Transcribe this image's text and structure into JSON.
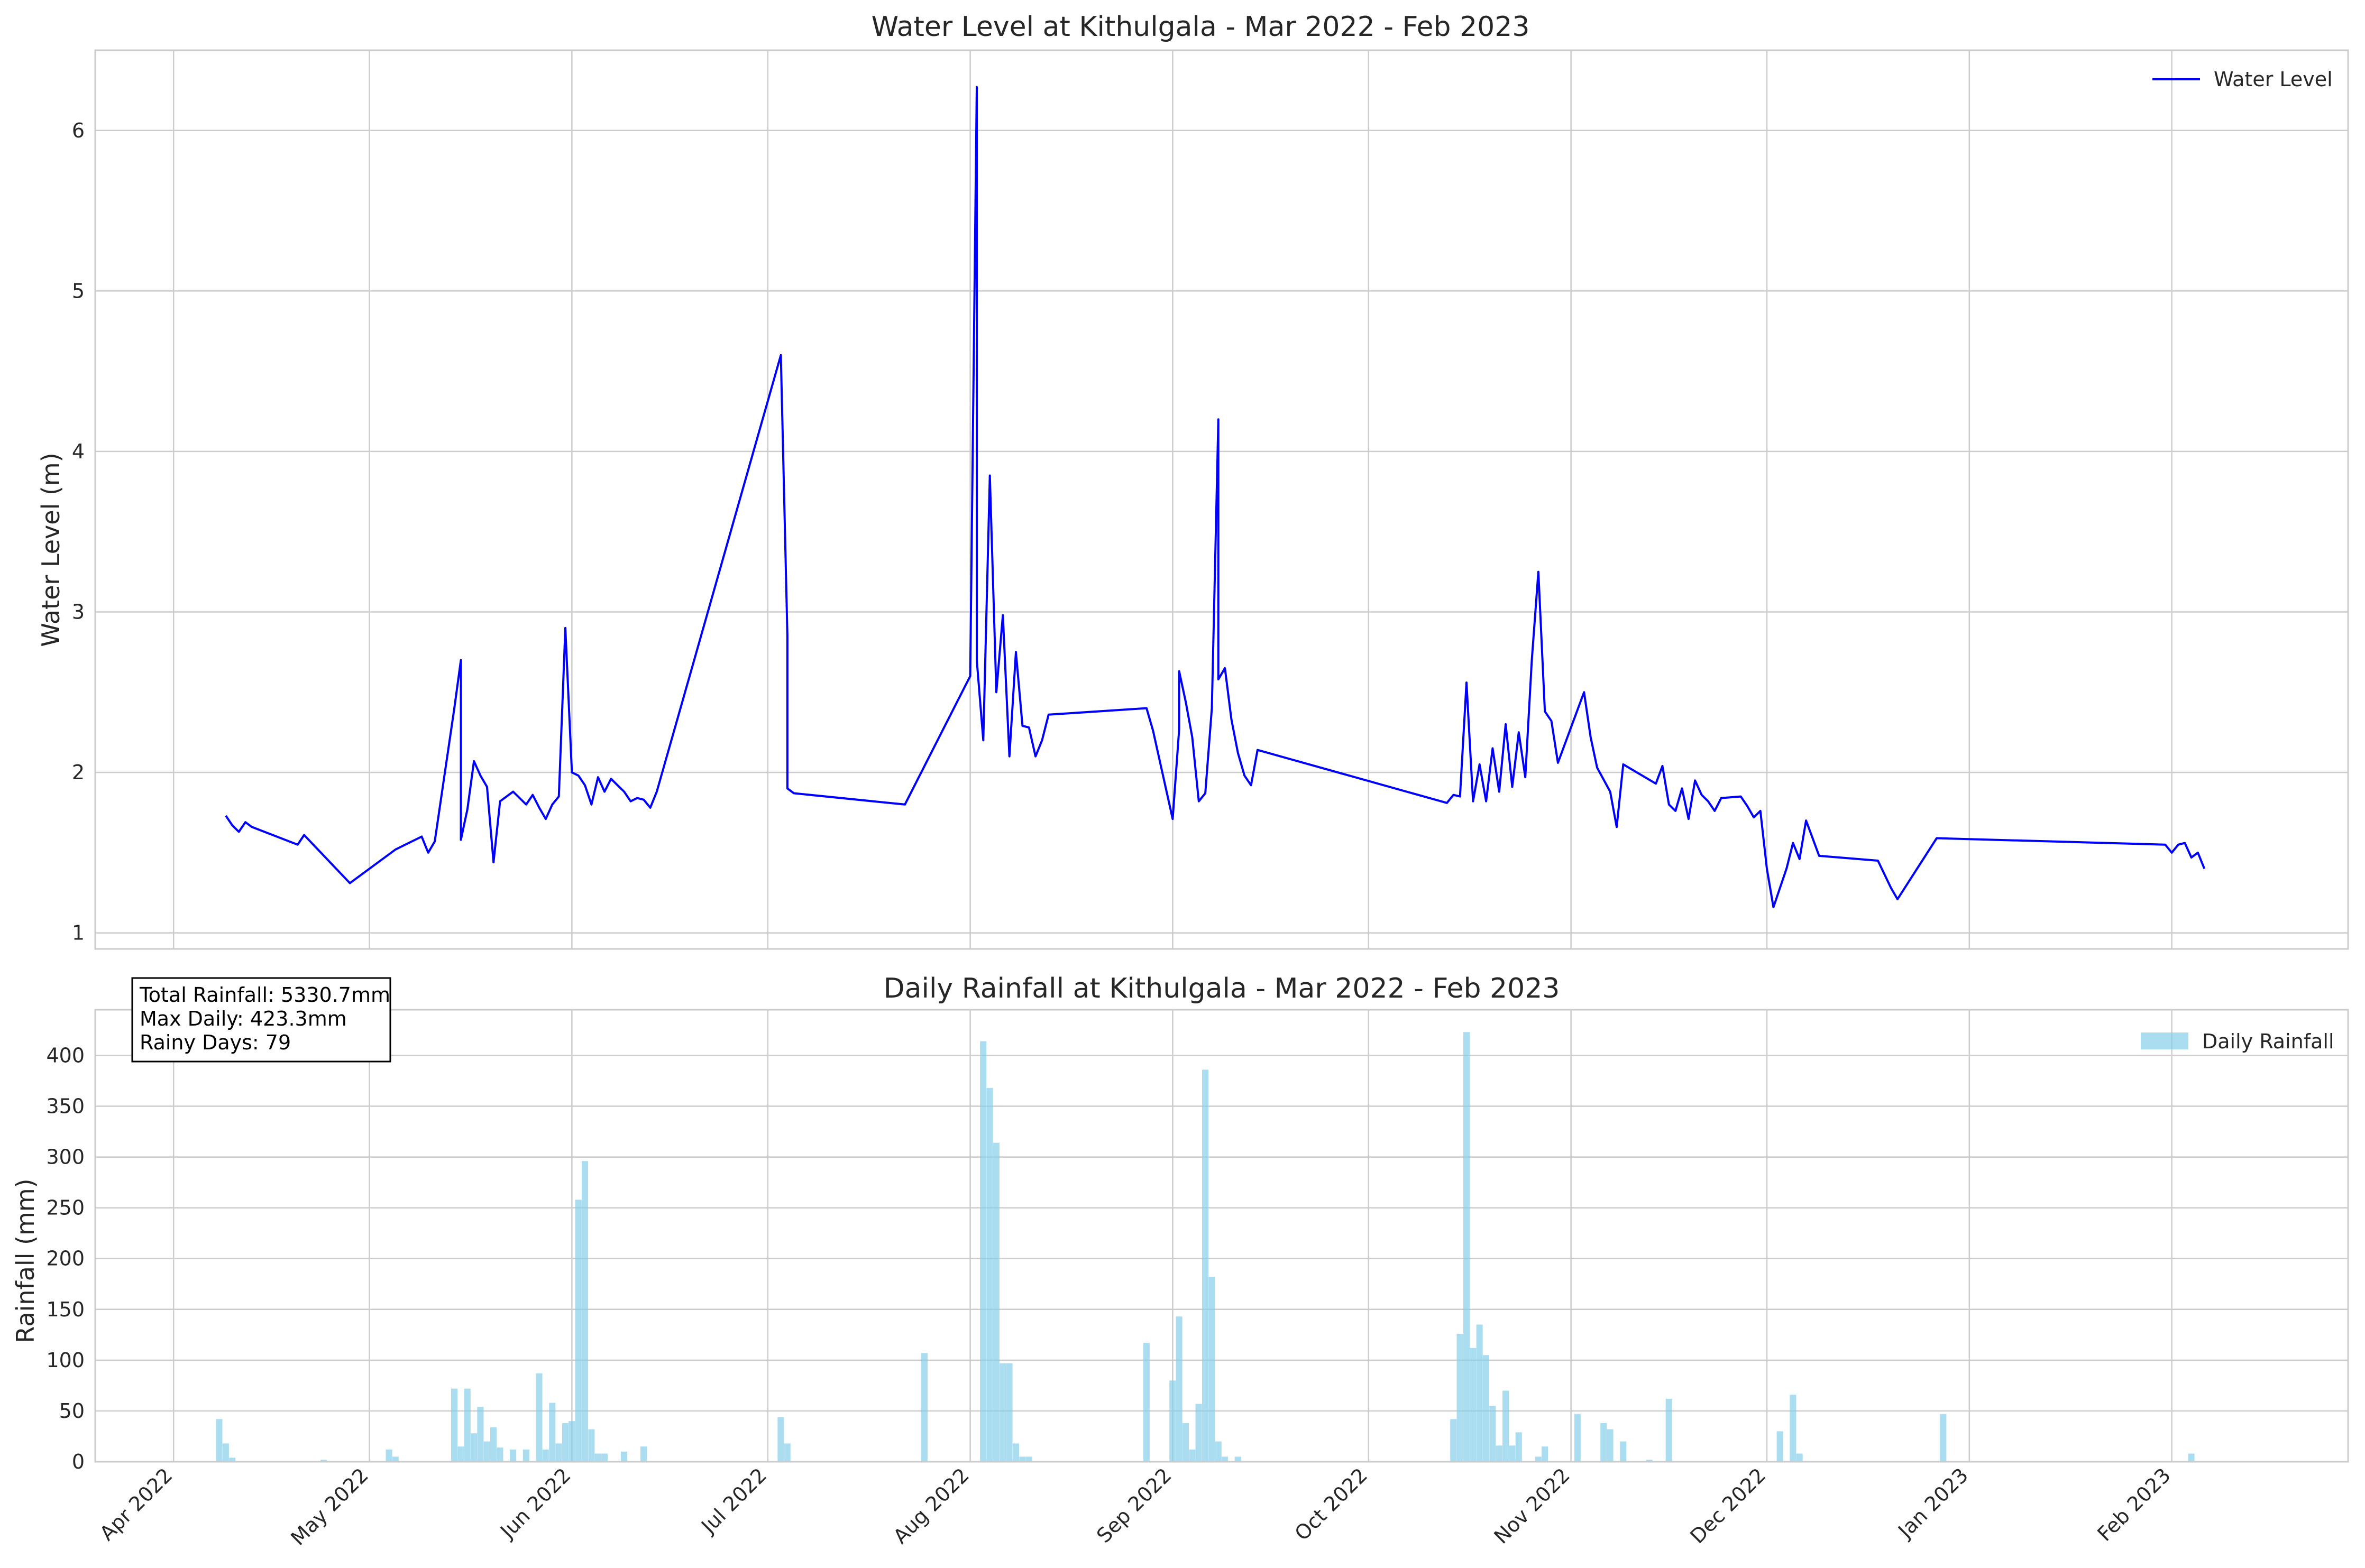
{
  "chart_data": [
    {
      "type": "line",
      "title": "Water Level at Kithulgala - Mar 2022 - Feb 2023",
      "xlabel": "",
      "ylabel": "Water Level (m)",
      "xlim": [
        "2022-03-20",
        "2023-02-28"
      ],
      "ylim": [
        0.9,
        6.5
      ],
      "yticks": [
        1,
        2,
        3,
        4,
        5,
        6
      ],
      "xticks": [
        "2022-04-01",
        "2022-05-01",
        "2022-06-01",
        "2022-07-01",
        "2022-08-01",
        "2022-09-01",
        "2022-10-01",
        "2022-11-01",
        "2022-12-01",
        "2023-01-01",
        "2023-02-01"
      ],
      "grid": true,
      "legend_position": "upper right",
      "series": [
        {
          "name": "Water Level",
          "color": "#0000ff",
          "points": [
            [
              "2022-04-09",
              1.73
            ],
            [
              "2022-04-10",
              1.67
            ],
            [
              "2022-04-11",
              1.63
            ],
            [
              "2022-04-12",
              1.69
            ],
            [
              "2022-04-13",
              1.66
            ],
            [
              "2022-04-20",
              1.55
            ],
            [
              "2022-04-21",
              1.61
            ],
            [
              "2022-04-28",
              1.31
            ],
            [
              "2022-05-05",
              1.52
            ],
            [
              "2022-05-09",
              1.6
            ],
            [
              "2022-05-10",
              1.5
            ],
            [
              "2022-05-11",
              1.57
            ],
            [
              "2022-05-14",
              2.4
            ],
            [
              "2022-05-15",
              2.7
            ],
            [
              "2022-05-15",
              1.58
            ],
            [
              "2022-05-16",
              1.77
            ],
            [
              "2022-05-17",
              2.07
            ],
            [
              "2022-05-18",
              1.98
            ],
            [
              "2022-05-19",
              1.91
            ],
            [
              "2022-05-20",
              1.44
            ],
            [
              "2022-05-21",
              1.82
            ],
            [
              "2022-05-22",
              1.85
            ],
            [
              "2022-05-23",
              1.88
            ],
            [
              "2022-05-25",
              1.8
            ],
            [
              "2022-05-26",
              1.86
            ],
            [
              "2022-05-27",
              1.78
            ],
            [
              "2022-05-28",
              1.71
            ],
            [
              "2022-05-29",
              1.8
            ],
            [
              "2022-05-30",
              1.85
            ],
            [
              "2022-05-31",
              2.9
            ],
            [
              "2022-06-01",
              2.0
            ],
            [
              "2022-06-02",
              1.98
            ],
            [
              "2022-06-03",
              1.92
            ],
            [
              "2022-06-04",
              1.8
            ],
            [
              "2022-06-05",
              1.97
            ],
            [
              "2022-06-06",
              1.88
            ],
            [
              "2022-06-07",
              1.96
            ],
            [
              "2022-06-08",
              1.92
            ],
            [
              "2022-06-09",
              1.88
            ],
            [
              "2022-06-10",
              1.82
            ],
            [
              "2022-06-11",
              1.84
            ],
            [
              "2022-06-12",
              1.83
            ],
            [
              "2022-06-13",
              1.78
            ],
            [
              "2022-06-14",
              1.88
            ],
            [
              "2022-07-03",
              4.6
            ],
            [
              "2022-07-04",
              2.85
            ],
            [
              "2022-07-04",
              1.9
            ],
            [
              "2022-07-05",
              1.87
            ],
            [
              "2022-07-22",
              1.8
            ],
            [
              "2022-08-01",
              2.6
            ],
            [
              "2022-08-02",
              6.27
            ],
            [
              "2022-08-02",
              2.7
            ],
            [
              "2022-08-03",
              2.2
            ],
            [
              "2022-08-04",
              3.85
            ],
            [
              "2022-08-05",
              2.5
            ],
            [
              "2022-08-06",
              2.98
            ],
            [
              "2022-08-07",
              2.1
            ],
            [
              "2022-08-08",
              2.75
            ],
            [
              "2022-08-09",
              2.29
            ],
            [
              "2022-08-10",
              2.28
            ],
            [
              "2022-08-11",
              2.1
            ],
            [
              "2022-08-12",
              2.2
            ],
            [
              "2022-08-13",
              2.36
            ],
            [
              "2022-08-28",
              2.4
            ],
            [
              "2022-08-29",
              2.26
            ],
            [
              "2022-09-01",
              1.71
            ],
            [
              "2022-09-02",
              2.27
            ],
            [
              "2022-09-02",
              2.63
            ],
            [
              "2022-09-03",
              2.44
            ],
            [
              "2022-09-04",
              2.22
            ],
            [
              "2022-09-05",
              1.82
            ],
            [
              "2022-09-06",
              1.87
            ],
            [
              "2022-09-07",
              2.4
            ],
            [
              "2022-09-08",
              4.2
            ],
            [
              "2022-09-08",
              2.58
            ],
            [
              "2022-09-09",
              2.65
            ],
            [
              "2022-09-10",
              2.33
            ],
            [
              "2022-09-11",
              2.12
            ],
            [
              "2022-09-12",
              1.98
            ],
            [
              "2022-09-13",
              1.92
            ],
            [
              "2022-09-14",
              2.14
            ],
            [
              "2022-10-13",
              1.81
            ],
            [
              "2022-10-14",
              1.86
            ],
            [
              "2022-10-15",
              1.85
            ],
            [
              "2022-10-16",
              2.56
            ],
            [
              "2022-10-17",
              1.82
            ],
            [
              "2022-10-18",
              2.05
            ],
            [
              "2022-10-19",
              1.82
            ],
            [
              "2022-10-20",
              2.15
            ],
            [
              "2022-10-21",
              1.88
            ],
            [
              "2022-10-22",
              2.3
            ],
            [
              "2022-10-23",
              1.91
            ],
            [
              "2022-10-24",
              2.25
            ],
            [
              "2022-10-25",
              1.97
            ],
            [
              "2022-10-26",
              2.7
            ],
            [
              "2022-10-27",
              3.25
            ],
            [
              "2022-10-28",
              2.38
            ],
            [
              "2022-10-29",
              2.32
            ],
            [
              "2022-10-30",
              2.06
            ],
            [
              "2022-11-03",
              2.5
            ],
            [
              "2022-11-04",
              2.22
            ],
            [
              "2022-11-05",
              2.03
            ],
            [
              "2022-11-07",
              1.88
            ],
            [
              "2022-11-08",
              1.66
            ],
            [
              "2022-11-09",
              2.05
            ],
            [
              "2022-11-14",
              1.93
            ],
            [
              "2022-11-15",
              2.04
            ],
            [
              "2022-11-16",
              1.8
            ],
            [
              "2022-11-17",
              1.76
            ],
            [
              "2022-11-18",
              1.9
            ],
            [
              "2022-11-19",
              1.71
            ],
            [
              "2022-11-20",
              1.95
            ],
            [
              "2022-11-21",
              1.86
            ],
            [
              "2022-11-22",
              1.82
            ],
            [
              "2022-11-23",
              1.76
            ],
            [
              "2022-11-24",
              1.84
            ],
            [
              "2022-11-27",
              1.85
            ],
            [
              "2022-11-28",
              1.79
            ],
            [
              "2022-11-29",
              1.72
            ],
            [
              "2022-11-30",
              1.76
            ],
            [
              "2022-12-01",
              1.4
            ],
            [
              "2022-12-02",
              1.16
            ],
            [
              "2022-12-04",
              1.4
            ],
            [
              "2022-12-05",
              1.56
            ],
            [
              "2022-12-06",
              1.46
            ],
            [
              "2022-12-07",
              1.7
            ],
            [
              "2022-12-08",
              1.59
            ],
            [
              "2022-12-09",
              1.48
            ],
            [
              "2022-12-18",
              1.45
            ],
            [
              "2022-12-20",
              1.28
            ],
            [
              "2022-12-21",
              1.21
            ],
            [
              "2022-12-27",
              1.59
            ],
            [
              "2023-01-31",
              1.55
            ],
            [
              "2023-02-01",
              1.5
            ],
            [
              "2023-02-02",
              1.55
            ],
            [
              "2023-02-03",
              1.56
            ],
            [
              "2023-02-04",
              1.47
            ],
            [
              "2023-02-05",
              1.5
            ],
            [
              "2023-02-06",
              1.4
            ]
          ]
        }
      ]
    },
    {
      "type": "bar",
      "title": "Daily Rainfall at Kithulgala - Mar 2022 - Feb 2023",
      "xlabel": "",
      "ylabel": "Rainfall (mm)",
      "xlim": [
        "2022-03-20",
        "2023-02-28"
      ],
      "ylim": [
        0,
        445
      ],
      "yticks": [
        0,
        50,
        100,
        150,
        200,
        250,
        300,
        350,
        400
      ],
      "xticks": [
        "2022-04-01",
        "2022-05-01",
        "2022-06-01",
        "2022-07-01",
        "2022-08-01",
        "2022-09-01",
        "2022-10-01",
        "2022-11-01",
        "2022-12-01",
        "2023-01-01",
        "2023-02-01"
      ],
      "grid": true,
      "legend_position": "upper right",
      "stats": {
        "total": "Total Rainfall: 5330.7mm",
        "max_daily": "Max Daily: 423.3mm",
        "rainy_days": "Rainy Days: 79"
      },
      "series": [
        {
          "name": "Daily Rainfall",
          "color": "#87ceeb",
          "points": [
            [
              "2022-04-08",
              42
            ],
            [
              "2022-04-09",
              18
            ],
            [
              "2022-04-10",
              4
            ],
            [
              "2022-04-24",
              2
            ],
            [
              "2022-05-04",
              12
            ],
            [
              "2022-05-05",
              5
            ],
            [
              "2022-05-14",
              72
            ],
            [
              "2022-05-15",
              15
            ],
            [
              "2022-05-16",
              72
            ],
            [
              "2022-05-17",
              28
            ],
            [
              "2022-05-18",
              54
            ],
            [
              "2022-05-19",
              20
            ],
            [
              "2022-05-20",
              34
            ],
            [
              "2022-05-21",
              14
            ],
            [
              "2022-05-23",
              12
            ],
            [
              "2022-05-25",
              12
            ],
            [
              "2022-05-27",
              87
            ],
            [
              "2022-05-28",
              12
            ],
            [
              "2022-05-29",
              58
            ],
            [
              "2022-05-30",
              18
            ],
            [
              "2022-05-31",
              38
            ],
            [
              "2022-06-01",
              40
            ],
            [
              "2022-06-02",
              258
            ],
            [
              "2022-06-03",
              296
            ],
            [
              "2022-06-04",
              32
            ],
            [
              "2022-06-05",
              8
            ],
            [
              "2022-06-06",
              8
            ],
            [
              "2022-06-09",
              10
            ],
            [
              "2022-06-12",
              15
            ],
            [
              "2022-07-03",
              44
            ],
            [
              "2022-07-04",
              18
            ],
            [
              "2022-07-25",
              107
            ],
            [
              "2022-08-03",
              414
            ],
            [
              "2022-08-04",
              368
            ],
            [
              "2022-08-05",
              314
            ],
            [
              "2022-08-06",
              97
            ],
            [
              "2022-08-07",
              97
            ],
            [
              "2022-08-08",
              18
            ],
            [
              "2022-08-09",
              5
            ],
            [
              "2022-08-10",
              5
            ],
            [
              "2022-08-28",
              117
            ],
            [
              "2022-09-01",
              80
            ],
            [
              "2022-09-02",
              143
            ],
            [
              "2022-09-03",
              38
            ],
            [
              "2022-09-04",
              12
            ],
            [
              "2022-09-05",
              57
            ],
            [
              "2022-09-06",
              386
            ],
            [
              "2022-09-07",
              182
            ],
            [
              "2022-09-08",
              20
            ],
            [
              "2022-09-09",
              5
            ],
            [
              "2022-09-11",
              5
            ],
            [
              "2022-10-14",
              42
            ],
            [
              "2022-10-15",
              126
            ],
            [
              "2022-10-16",
              423
            ],
            [
              "2022-10-17",
              112
            ],
            [
              "2022-10-18",
              135
            ],
            [
              "2022-10-19",
              105
            ],
            [
              "2022-10-20",
              55
            ],
            [
              "2022-10-21",
              16
            ],
            [
              "2022-10-22",
              70
            ],
            [
              "2022-10-23",
              16
            ],
            [
              "2022-10-24",
              29
            ],
            [
              "2022-10-27",
              5
            ],
            [
              "2022-10-28",
              15
            ],
            [
              "2022-11-02",
              47
            ],
            [
              "2022-11-06",
              38
            ],
            [
              "2022-11-07",
              32
            ],
            [
              "2022-11-09",
              20
            ],
            [
              "2022-11-13",
              2
            ],
            [
              "2022-11-16",
              62
            ],
            [
              "2022-12-03",
              30
            ],
            [
              "2022-12-05",
              66
            ],
            [
              "2022-12-06",
              8
            ],
            [
              "2022-12-28",
              47
            ],
            [
              "2023-02-04",
              8
            ]
          ]
        }
      ]
    }
  ]
}
